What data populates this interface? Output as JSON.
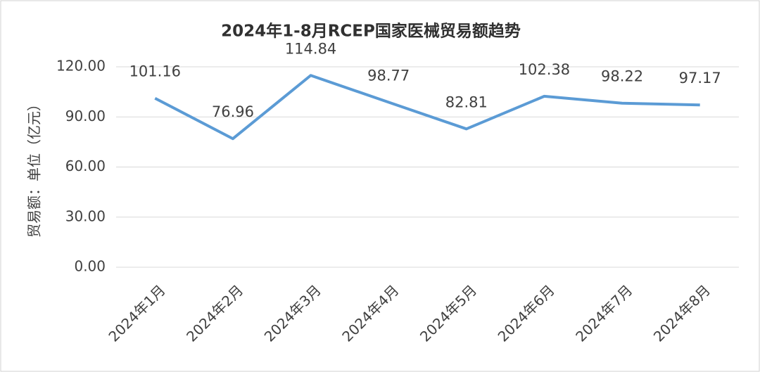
{
  "chart_data": {
    "type": "line",
    "title": "2024年1-8月RCEP国家医械贸易额趋势",
    "y_label": "贸易额：单位（亿元）",
    "categories": [
      "2024年1月",
      "2024年2月",
      "2024年3月",
      "2024年4月",
      "2024年5月",
      "2024年6月",
      "2024年7月",
      "2024年8月"
    ],
    "series": [
      {
        "name": "贸易额",
        "color": "#5b9bd5",
        "values": [
          101.16,
          76.96,
          114.84,
          98.77,
          82.81,
          102.38,
          98.22,
          97.17
        ]
      }
    ],
    "ylim": [
      0,
      120
    ],
    "yticks": [
      {
        "value": 0,
        "label": "0.00"
      },
      {
        "value": 30,
        "label": "30.00"
      },
      {
        "value": 60,
        "label": "60.00"
      },
      {
        "value": 90,
        "label": "90.00"
      },
      {
        "value": 120,
        "label": "120.00"
      }
    ],
    "grid": true
  }
}
